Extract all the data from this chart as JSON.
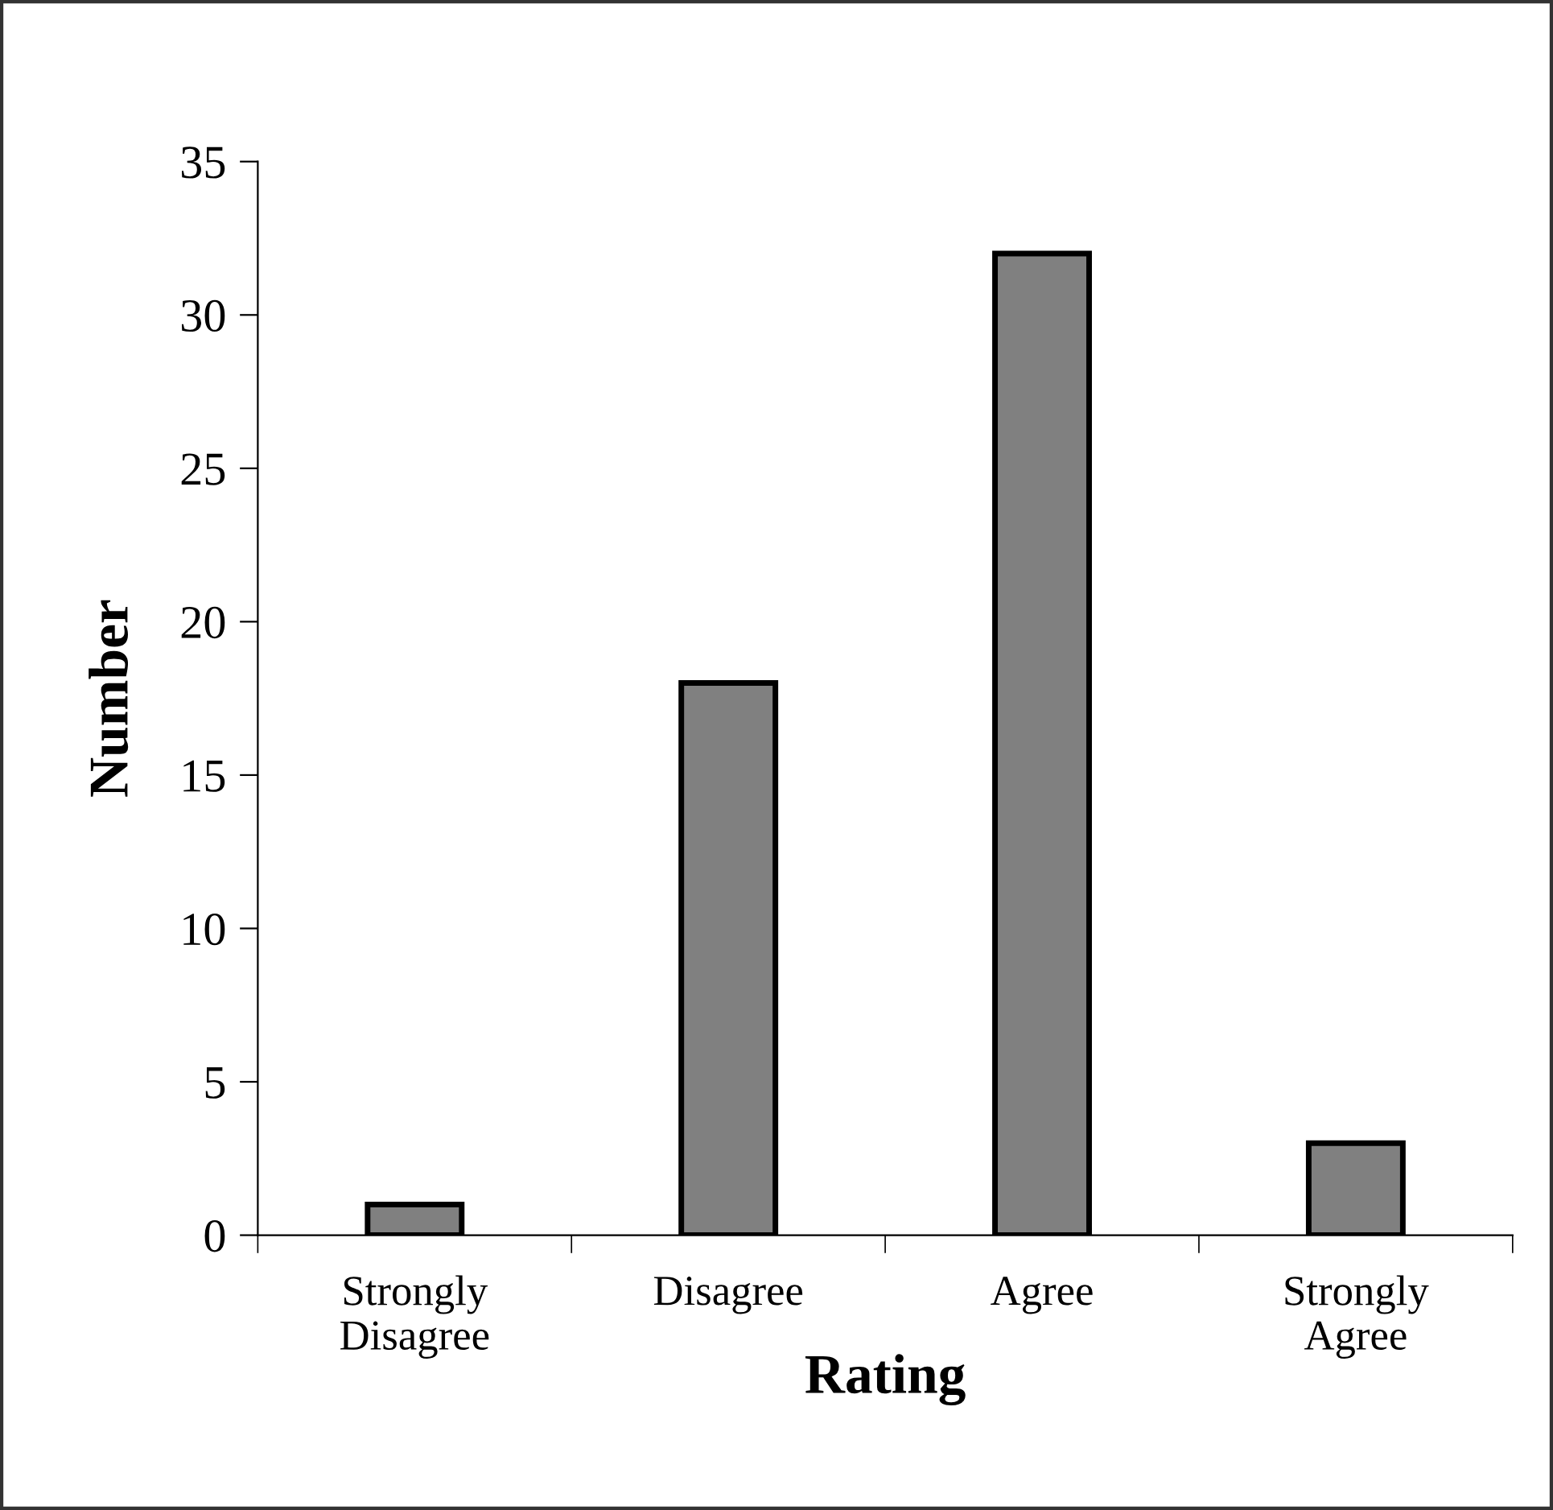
{
  "chart_data": {
    "type": "bar",
    "xlabel": "Rating",
    "ylabel": "Number",
    "categories": [
      "Strongly\nDisagree",
      "Disagree",
      "Agree",
      "Strongly\nAgree"
    ],
    "values": [
      1,
      18,
      32,
      3
    ],
    "color": "#808080",
    "ylim": [
      0,
      35
    ],
    "yticks": [
      0,
      5,
      10,
      15,
      20,
      25,
      30,
      35
    ],
    "grid": false,
    "legend": false
  }
}
